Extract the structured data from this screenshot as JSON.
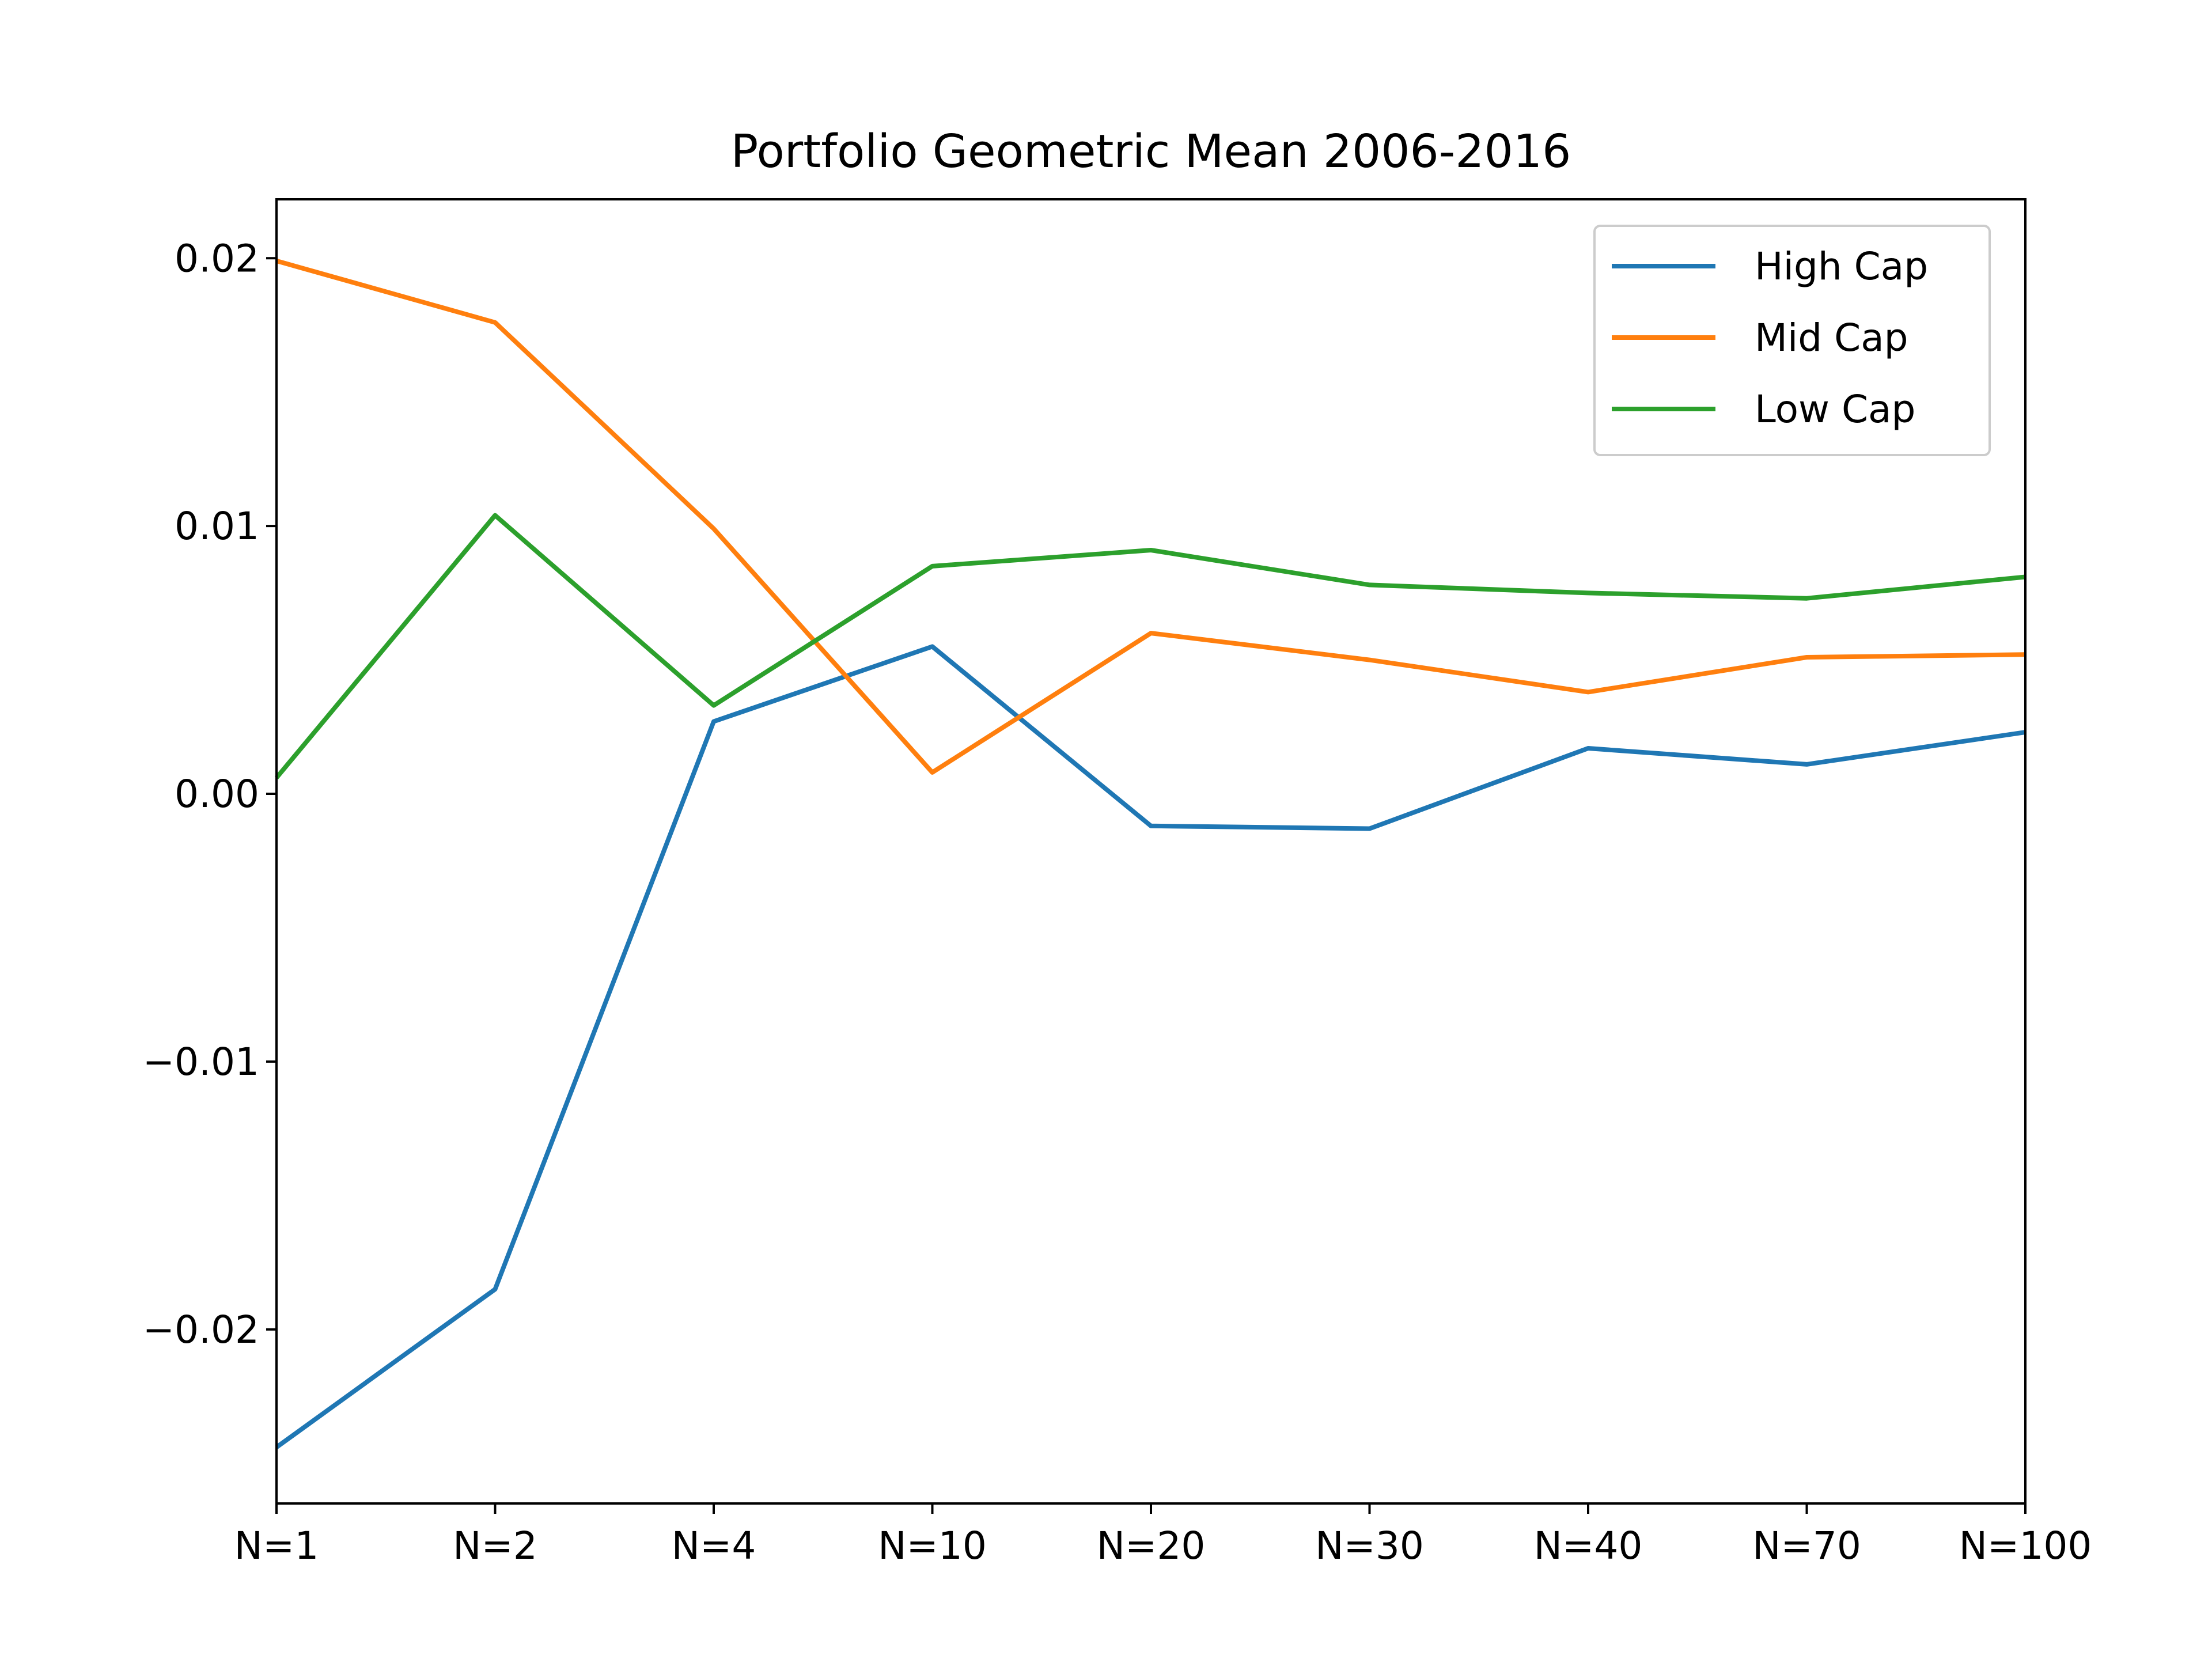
{
  "chart_data": {
    "type": "line",
    "title": "Portfolio Geometric Mean 2006-2016",
    "xlabel": "",
    "ylabel": "",
    "categories": [
      "N=1",
      "N=2",
      "N=4",
      "N=10",
      "N=20",
      "N=30",
      "N=40",
      "N=70",
      "N=100"
    ],
    "ylim": [
      -0.0265,
      0.0222
    ],
    "yticks": [
      {
        "value": -0.02,
        "label": "−0.02"
      },
      {
        "value": -0.01,
        "label": "−0.01"
      },
      {
        "value": 0.0,
        "label": "0.00"
      },
      {
        "value": 0.01,
        "label": "0.01"
      },
      {
        "value": 0.02,
        "label": "0.02"
      }
    ],
    "grid": false,
    "legend_position": "top-right",
    "series": [
      {
        "name": "High Cap",
        "color": "#1f77b4",
        "values": [
          -0.0244,
          -0.0185,
          0.0027,
          0.0055,
          -0.0012,
          -0.0013,
          0.0017,
          0.0011,
          0.0023
        ]
      },
      {
        "name": "Mid Cap",
        "color": "#ff7f0e",
        "values": [
          0.0199,
          0.0176,
          0.0099,
          0.0008,
          0.006,
          0.005,
          0.0038,
          0.0051,
          0.0052
        ]
      },
      {
        "name": "Low Cap",
        "color": "#2ca02c",
        "values": [
          0.0006,
          0.0104,
          0.0033,
          0.0085,
          0.0091,
          0.0078,
          0.0075,
          0.0073,
          0.0081
        ]
      }
    ]
  }
}
